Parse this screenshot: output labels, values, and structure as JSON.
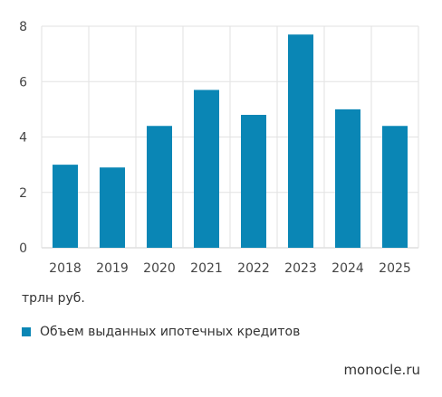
{
  "chart_data": {
    "type": "bar",
    "categories": [
      "2018",
      "2019",
      "2020",
      "2021",
      "2022",
      "2023",
      "2024",
      "2025"
    ],
    "series": [
      {
        "name": "Объем выданных ипотечных кредитов",
        "values": [
          3.0,
          2.9,
          4.4,
          5.7,
          4.8,
          7.7,
          5.0,
          4.4
        ],
        "color": "#0a86b5"
      }
    ],
    "ylim": [
      0,
      8
    ],
    "yticks": [
      0,
      2,
      4,
      6,
      8
    ],
    "ylabel": "трлн руб.",
    "grid": true,
    "legend": "bottom-left"
  },
  "footer": {
    "unit": "трлн руб.",
    "legend_label": "Объем выданных ипотечных кредитов",
    "source": "monocle.ru"
  }
}
